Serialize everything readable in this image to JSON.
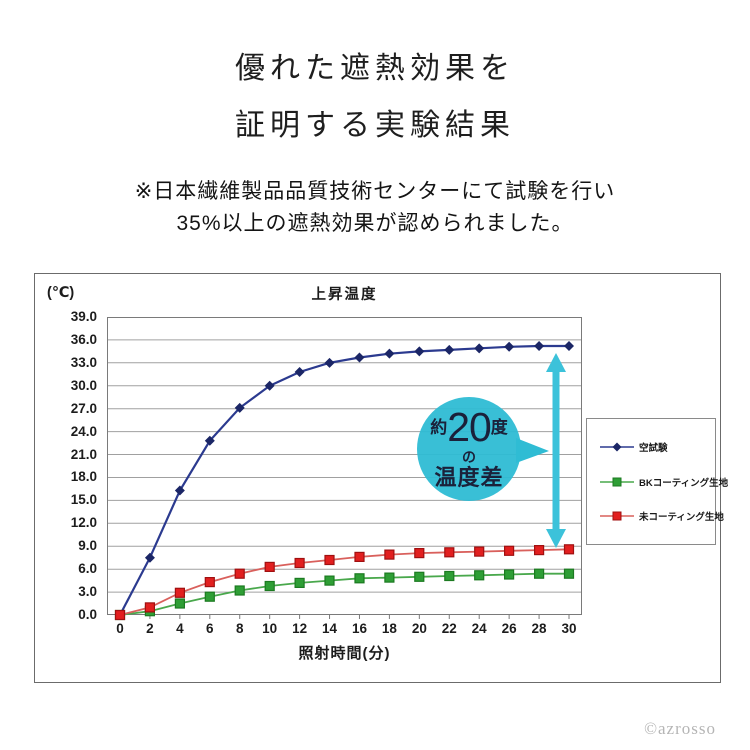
{
  "header": {
    "title_line1": "優れた遮熱効果を",
    "title_line2": "証明する実験結果",
    "note_line1": "※日本繊維製品品質技術センターにて試験を行い",
    "note_line2": "35%以上の遮熱効果が認められました。"
  },
  "chart_data": {
    "type": "line",
    "title": "上昇温度",
    "y_unit_label": "(℃)",
    "xlabel": "照射時間(分)",
    "x": [
      0,
      2,
      4,
      6,
      8,
      10,
      12,
      14,
      16,
      18,
      20,
      22,
      24,
      26,
      28,
      30
    ],
    "ylim": [
      0,
      39
    ],
    "ytick_step": 3,
    "yticks": [
      "39.0",
      "36.0",
      "33.0",
      "30.0",
      "27.0",
      "24.0",
      "21.0",
      "18.0",
      "15.0",
      "12.0",
      "9.0",
      "6.0",
      "3.0",
      "0.0"
    ],
    "grid": true,
    "legend_position": "right",
    "series": [
      {
        "name": "空試験",
        "marker": "diamond",
        "color": "#2b3a8f",
        "marker_color": "#1b2666",
        "marker_edge": "#1b2666",
        "values": [
          0.0,
          7.5,
          16.3,
          22.8,
          27.1,
          30.0,
          31.8,
          33.0,
          33.7,
          34.2,
          34.5,
          34.7,
          34.9,
          35.1,
          35.2,
          35.2
        ]
      },
      {
        "name": "BKコーティング生地",
        "marker": "square",
        "color": "#49a84c",
        "marker_color": "#2e9e35",
        "marker_edge": "#1c7a21",
        "values": [
          0.0,
          0.5,
          1.5,
          2.4,
          3.2,
          3.8,
          4.2,
          4.5,
          4.8,
          4.9,
          5.0,
          5.1,
          5.2,
          5.3,
          5.4,
          5.4
        ]
      },
      {
        "name": "未コーティング生地",
        "marker": "square",
        "color": "#d9605c",
        "marker_color": "#e21f1f",
        "marker_edge": "#a01010",
        "values": [
          0.0,
          1.0,
          2.9,
          4.3,
          5.4,
          6.3,
          6.8,
          7.2,
          7.6,
          7.9,
          8.1,
          8.2,
          8.3,
          8.4,
          8.5,
          8.6
        ]
      }
    ]
  },
  "annotation": {
    "prefix": "約",
    "big": "20",
    "suffix": "度",
    "mid": "の",
    "bottom": "温度差",
    "bubble_color": "#2fbcd4",
    "arrow_color": "#3cc2da",
    "text_color": "#0f1630"
  },
  "footer": {
    "watermark": "©azrosso"
  }
}
